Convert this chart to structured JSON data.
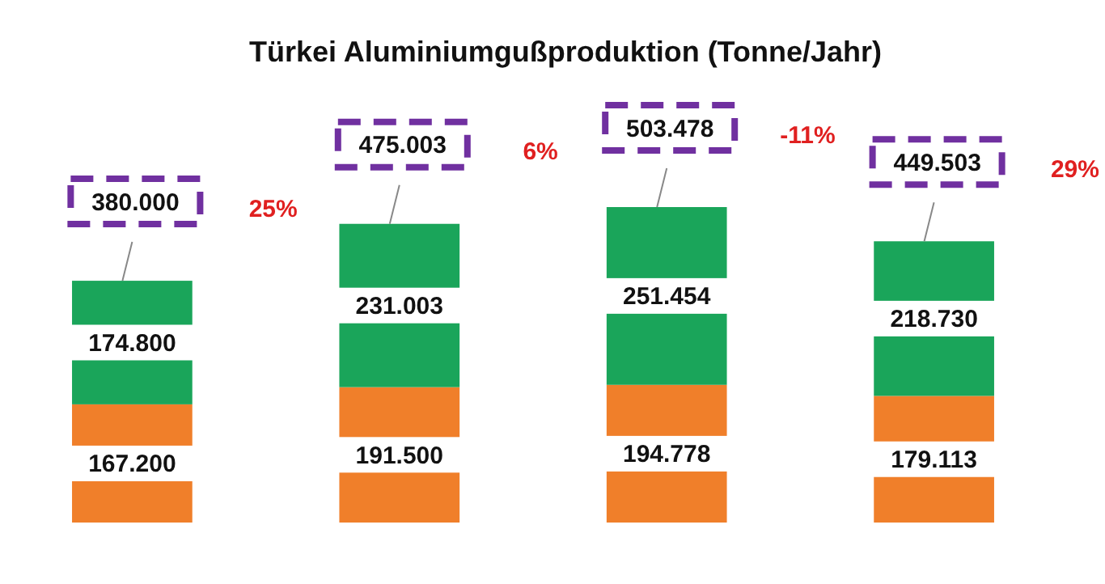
{
  "chart_data": {
    "type": "bar",
    "title": "Türkei Aluminiumgußproduktion (Tonne/Jahr)",
    "stacked": true,
    "categories": [
      null,
      null,
      null,
      null
    ],
    "series": [
      {
        "color": "#f07f2a",
        "values": [
          167200,
          191500,
          194778,
          179113
        ],
        "value_labels": [
          "167.200",
          "191.500",
          "194.778",
          "179.113"
        ]
      },
      {
        "color": "#1aa55a",
        "values": [
          174800,
          231003,
          251454,
          218730
        ],
        "value_labels": [
          "174.800",
          "231.003",
          "251.454",
          "218.730"
        ]
      }
    ],
    "annotations": [
      "380.000",
      "475.003",
      "503.478",
      "449.503",
      "25%",
      "6%",
      "-11%",
      "29%"
    ]
  }
}
